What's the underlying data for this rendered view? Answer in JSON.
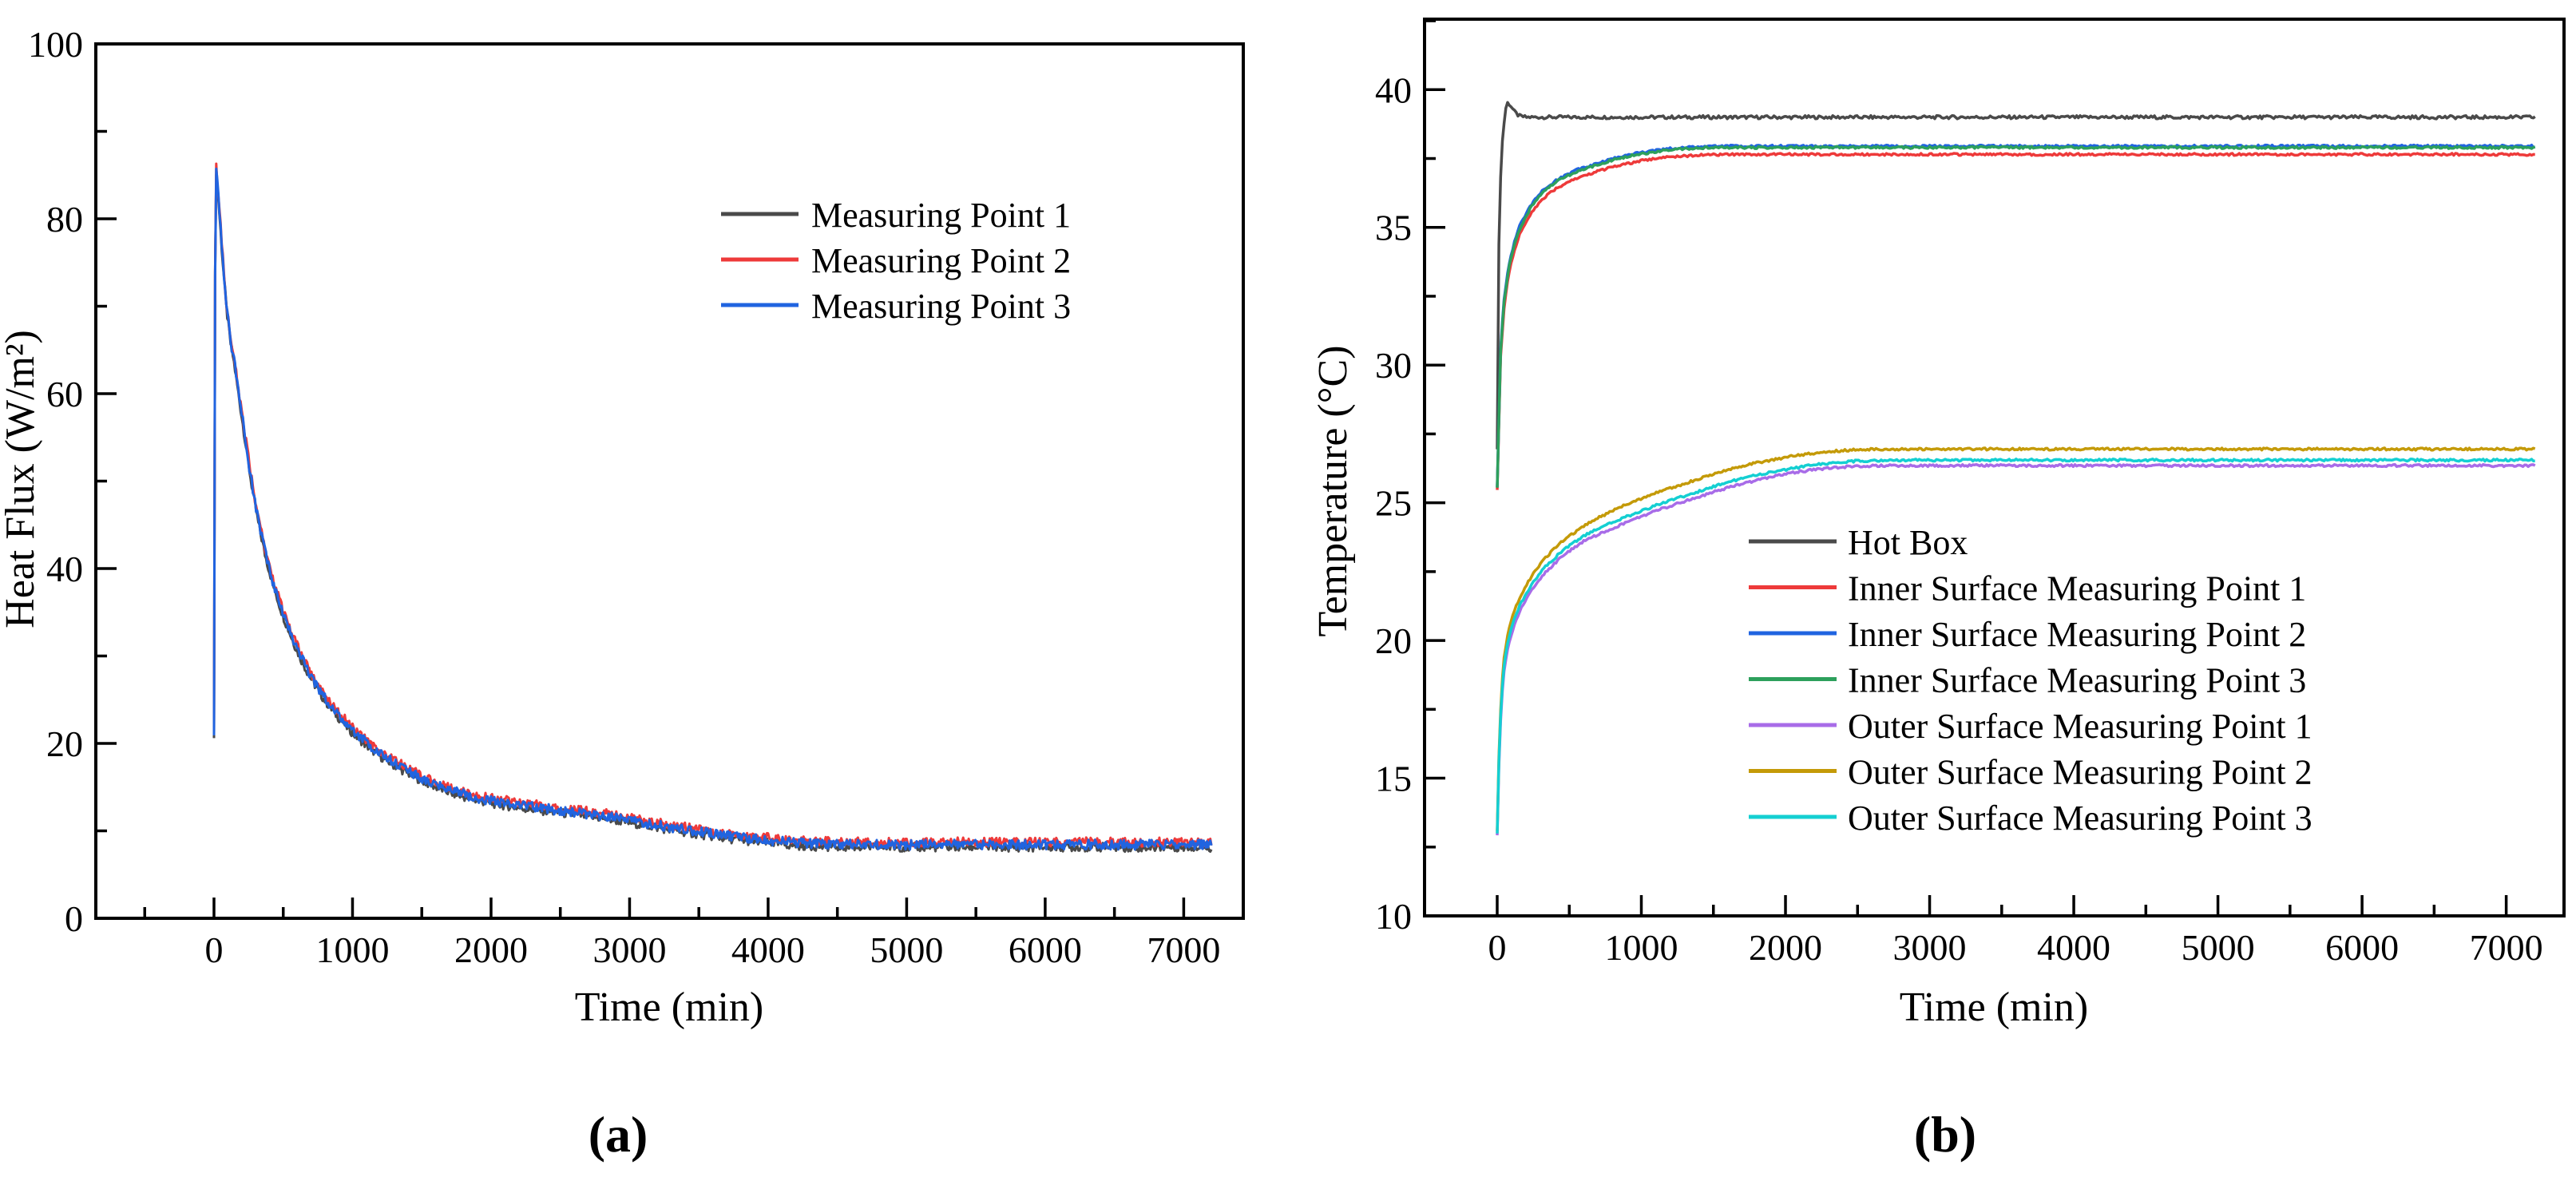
{
  "page": {
    "background": "#ffffff"
  },
  "figure": {
    "captions": [
      "(a)",
      "(b)"
    ]
  },
  "chart_data": [
    {
      "id": "a",
      "type": "line",
      "title": "",
      "xlabel": "Time (min)",
      "ylabel": "Heat Flux (W/m²)",
      "xlim": [
        -853,
        7430
      ],
      "ylim": [
        0,
        100
      ],
      "grid": false,
      "legend_position": "upper right inside",
      "xticks": {
        "major": [
          0,
          1000,
          2000,
          3000,
          4000,
          5000,
          6000,
          7000
        ],
        "minor": [
          -500,
          500,
          1500,
          2500,
          3500,
          4500,
          5500,
          6500
        ]
      },
      "yticks": {
        "major": [
          0,
          20,
          40,
          60,
          80,
          100
        ],
        "minor": [
          10,
          30,
          50,
          70,
          90
        ]
      },
      "base_points": [
        [
          0,
          21.4
        ],
        [
          10,
          87
        ],
        [
          30,
          83
        ],
        [
          60,
          76
        ],
        [
          90,
          70
        ],
        [
          120,
          66
        ],
        [
          140,
          64.3
        ],
        [
          170,
          61
        ],
        [
          220,
          55.5
        ],
        [
          270,
          50
        ],
        [
          320,
          45.5
        ],
        [
          370,
          41.8
        ],
        [
          420,
          38.8
        ],
        [
          470,
          36.2
        ],
        [
          520,
          34
        ],
        [
          570,
          32
        ],
        [
          620,
          30.2
        ],
        [
          670,
          28.6
        ],
        [
          720,
          27.2
        ],
        [
          770,
          25.9
        ],
        [
          820,
          24.8
        ],
        [
          870,
          23.8
        ],
        [
          920,
          22.9
        ],
        [
          970,
          22
        ],
        [
          1020,
          21.2
        ],
        [
          1120,
          19.8
        ],
        [
          1220,
          18.6
        ],
        [
          1320,
          17.6
        ],
        [
          1420,
          16.7
        ],
        [
          1520,
          15.9
        ],
        [
          1620,
          15.2
        ],
        [
          1720,
          14.6
        ],
        [
          1820,
          14.1
        ],
        [
          1920,
          13.7
        ],
        [
          2020,
          13.4
        ],
        [
          2220,
          12.9
        ],
        [
          2420,
          12.5
        ],
        [
          2620,
          12.1
        ],
        [
          2820,
          11.7
        ],
        [
          3020,
          11.2
        ],
        [
          3220,
          10.6
        ],
        [
          3420,
          10.1
        ],
        [
          3620,
          9.6
        ],
        [
          3820,
          9.2
        ],
        [
          4020,
          8.9
        ],
        [
          4220,
          8.6
        ],
        [
          4420,
          8.5
        ],
        [
          4720,
          8.45
        ],
        [
          5020,
          8.4
        ],
        [
          5420,
          8.45
        ],
        [
          5820,
          8.4
        ],
        [
          6220,
          8.45
        ],
        [
          6620,
          8.4
        ],
        [
          7020,
          8.45
        ],
        [
          7200,
          8.4
        ]
      ],
      "series": [
        {
          "name": "Measuring Point 1",
          "color": "#4a4a4a",
          "offset": -0.3,
          "noise": 0.5
        },
        {
          "name": "Measuring Point 2",
          "color": "#ee3a3a",
          "offset": 0.3,
          "noise": 0.5
        },
        {
          "name": "Measuring Point 3",
          "color": "#2064e0",
          "offset": 0,
          "noise": 0.55
        }
      ]
    },
    {
      "id": "b",
      "type": "line",
      "title": "",
      "xlabel": "Time (min)",
      "ylabel": "Temperature (°C)",
      "xlim": [
        -504,
        7401
      ],
      "ylim": [
        10,
        42.56
      ],
      "grid": false,
      "legend_position": "right center inside",
      "xticks": {
        "major": [
          0,
          1000,
          2000,
          3000,
          4000,
          5000,
          6000,
          7000
        ],
        "minor": [
          500,
          1500,
          2500,
          3500,
          4500,
          5500,
          6500
        ]
      },
      "yticks": {
        "major": [
          10,
          15,
          20,
          25,
          30,
          35,
          40
        ],
        "minor": [
          12.5,
          17.5,
          22.5,
          27.5,
          32.5,
          37.5,
          42.5
        ]
      },
      "series": [
        {
          "name": "Hot Box",
          "color": "#4a4a4a",
          "noise": 0.06,
          "points": [
            [
              0,
              27
            ],
            [
              6,
              32
            ],
            [
              15,
              35.5
            ],
            [
              30,
              37.8
            ],
            [
              50,
              38.9
            ],
            [
              65,
              39.55
            ],
            [
              90,
              39.45
            ],
            [
              120,
              39.2
            ],
            [
              150,
              39.05
            ],
            [
              200,
              39
            ],
            [
              1000,
              39
            ],
            [
              3000,
              39
            ],
            [
              5000,
              39
            ],
            [
              7200,
              39
            ]
          ]
        },
        {
          "name": "Inner Surface Measuring Point 1",
          "color": "#ee3a3a",
          "noise": 0.04,
          "points": [
            [
              0,
              25.5
            ],
            [
              25,
              30.5
            ],
            [
              50,
              32.2
            ],
            [
              80,
              33.3
            ],
            [
              120,
              34.2
            ],
            [
              160,
              34.8
            ],
            [
              200,
              35.2
            ],
            [
              260,
              35.7
            ],
            [
              320,
              36.05
            ],
            [
              380,
              36.3
            ],
            [
              440,
              36.5
            ],
            [
              500,
              36.65
            ],
            [
              560,
              36.8
            ],
            [
              620,
              36.9
            ],
            [
              680,
              37
            ],
            [
              740,
              37.1
            ],
            [
              800,
              37.2
            ],
            [
              900,
              37.3
            ],
            [
              1000,
              37.42
            ],
            [
              1100,
              37.5
            ],
            [
              1200,
              37.56
            ],
            [
              1350,
              37.61
            ],
            [
              1500,
              37.64
            ],
            [
              1700,
              37.65
            ],
            [
              3000,
              37.65
            ],
            [
              7200,
              37.65
            ]
          ]
        },
        {
          "name": "Inner Surface Measuring Point 2",
          "color": "#2064e0",
          "noise": 0.04,
          "points": [
            [
              0,
              25.6
            ],
            [
              25,
              30.8
            ],
            [
              50,
              32.5
            ],
            [
              80,
              33.6
            ],
            [
              120,
              34.5
            ],
            [
              160,
              35.1
            ],
            [
              200,
              35.5
            ],
            [
              260,
              36
            ],
            [
              320,
              36.35
            ],
            [
              380,
              36.6
            ],
            [
              440,
              36.8
            ],
            [
              500,
              36.95
            ],
            [
              560,
              37.1
            ],
            [
              620,
              37.2
            ],
            [
              680,
              37.3
            ],
            [
              740,
              37.4
            ],
            [
              800,
              37.5
            ],
            [
              900,
              37.62
            ],
            [
              1000,
              37.72
            ],
            [
              1100,
              37.8
            ],
            [
              1200,
              37.86
            ],
            [
              1350,
              37.92
            ],
            [
              1500,
              37.95
            ],
            [
              1700,
              37.95
            ],
            [
              3000,
              37.95
            ],
            [
              7200,
              37.95
            ]
          ]
        },
        {
          "name": "Inner Surface Measuring Point 3",
          "color": "#2da05c",
          "noise": 0.04,
          "points": [
            [
              0,
              25.55
            ],
            [
              25,
              30.7
            ],
            [
              50,
              32.4
            ],
            [
              80,
              33.5
            ],
            [
              120,
              34.4
            ],
            [
              160,
              35
            ],
            [
              200,
              35.4
            ],
            [
              260,
              35.95
            ],
            [
              320,
              36.3
            ],
            [
              380,
              36.55
            ],
            [
              440,
              36.75
            ],
            [
              500,
              36.9
            ],
            [
              560,
              37.05
            ],
            [
              620,
              37.15
            ],
            [
              680,
              37.25
            ],
            [
              740,
              37.35
            ],
            [
              800,
              37.45
            ],
            [
              900,
              37.57
            ],
            [
              1000,
              37.67
            ],
            [
              1100,
              37.75
            ],
            [
              1200,
              37.81
            ],
            [
              1350,
              37.87
            ],
            [
              1500,
              37.9
            ],
            [
              1700,
              37.9
            ],
            [
              3000,
              37.9
            ],
            [
              7200,
              37.9
            ]
          ]
        },
        {
          "name": "Outer Surface Measuring Point 1",
          "color": "#a86ce8",
          "noise": 0.04,
          "points": [
            [
              0,
              12.9
            ],
            [
              15,
              16
            ],
            [
              30,
              17.8
            ],
            [
              50,
              19
            ],
            [
              80,
              19.9
            ],
            [
              120,
              20.6
            ],
            [
              160,
              21.1
            ],
            [
              200,
              21.5
            ],
            [
              260,
              22
            ],
            [
              320,
              22.4
            ],
            [
              380,
              22.7
            ],
            [
              440,
              23
            ],
            [
              500,
              23.25
            ],
            [
              600,
              23.6
            ],
            [
              700,
              23.85
            ],
            [
              800,
              24.05
            ],
            [
              900,
              24.3
            ],
            [
              1000,
              24.5
            ],
            [
              1150,
              24.8
            ],
            [
              1300,
              25.05
            ],
            [
              1450,
              25.3
            ],
            [
              1600,
              25.55
            ],
            [
              1750,
              25.75
            ],
            [
              1900,
              25.95
            ],
            [
              2050,
              26.1
            ],
            [
              2200,
              26.2
            ],
            [
              2350,
              26.28
            ],
            [
              2500,
              26.33
            ],
            [
              2700,
              26.35
            ],
            [
              4000,
              26.35
            ],
            [
              7200,
              26.35
            ]
          ]
        },
        {
          "name": "Outer Surface Measuring Point 2",
          "color": "#c49a08",
          "noise": 0.04,
          "points": [
            [
              0,
              13.1
            ],
            [
              15,
              16.4
            ],
            [
              30,
              18.2
            ],
            [
              50,
              19.5
            ],
            [
              80,
              20.4
            ],
            [
              120,
              21.1
            ],
            [
              160,
              21.6
            ],
            [
              200,
              22
            ],
            [
              260,
              22.5
            ],
            [
              320,
              22.9
            ],
            [
              380,
              23.25
            ],
            [
              440,
              23.55
            ],
            [
              500,
              23.8
            ],
            [
              600,
              24.15
            ],
            [
              700,
              24.45
            ],
            [
              800,
              24.7
            ],
            [
              900,
              24.95
            ],
            [
              1000,
              25.15
            ],
            [
              1150,
              25.45
            ],
            [
              1300,
              25.7
            ],
            [
              1450,
              25.95
            ],
            [
              1600,
              26.2
            ],
            [
              1750,
              26.4
            ],
            [
              1900,
              26.55
            ],
            [
              2050,
              26.7
            ],
            [
              2200,
              26.8
            ],
            [
              2350,
              26.88
            ],
            [
              2500,
              26.93
            ],
            [
              2700,
              26.95
            ],
            [
              4000,
              26.95
            ],
            [
              7200,
              26.95
            ]
          ]
        },
        {
          "name": "Outer Surface Measuring Point 3",
          "color": "#14cfd2",
          "noise": 0.04,
          "points": [
            [
              0,
              13
            ],
            [
              15,
              16.2
            ],
            [
              30,
              18
            ],
            [
              50,
              19.2
            ],
            [
              80,
              20.1
            ],
            [
              120,
              20.8
            ],
            [
              160,
              21.3
            ],
            [
              200,
              21.7
            ],
            [
              260,
              22.2
            ],
            [
              320,
              22.6
            ],
            [
              380,
              22.9
            ],
            [
              440,
              23.2
            ],
            [
              500,
              23.45
            ],
            [
              600,
              23.8
            ],
            [
              700,
              24.05
            ],
            [
              800,
              24.3
            ],
            [
              900,
              24.5
            ],
            [
              1000,
              24.7
            ],
            [
              1150,
              25
            ],
            [
              1300,
              25.25
            ],
            [
              1450,
              25.5
            ],
            [
              1600,
              25.75
            ],
            [
              1750,
              25.95
            ],
            [
              1900,
              26.1
            ],
            [
              2050,
              26.25
            ],
            [
              2200,
              26.38
            ],
            [
              2350,
              26.46
            ],
            [
              2500,
              26.52
            ],
            [
              2700,
              26.55
            ],
            [
              4000,
              26.55
            ],
            [
              7200,
              26.55
            ]
          ]
        }
      ]
    }
  ]
}
